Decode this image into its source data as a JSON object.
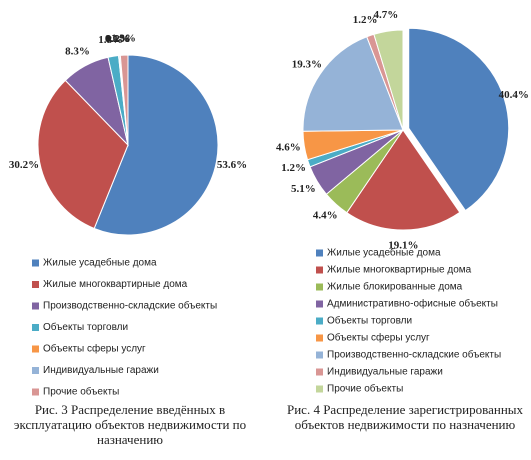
{
  "chart_data": [
    {
      "type": "pie",
      "categories": [
        "Жилые усадебные дома",
        "Жилые многоквартирные дома",
        "Производственно-складские объекты",
        "Объекты торговли",
        "Объекты сферы услуг",
        "Индивидуальные гаражи",
        "Прочие объекты"
      ],
      "values": [
        53.6,
        30.2,
        8.3,
        1.8,
        0.1,
        0.2,
        1.3
      ],
      "value_labels": [
        "53.6%",
        "30.2%",
        "8.3%",
        "1.8%",
        "0.1%",
        "0.2%",
        "1.3%"
      ],
      "colors": [
        "#4F81BD",
        "#C0504D",
        "#8064A2",
        "#4BACC6",
        "#F79646",
        "#95B3D7",
        "#D99694"
      ],
      "caption": [
        "Рис. 3 Распределение введённых в",
        "эксплуатацию объектов недвижимости по",
        "назначению"
      ]
    },
    {
      "type": "pie",
      "categories": [
        "Жилые усадебные дома",
        "Жилые многоквартирные дома",
        "Жилые блокированные дома",
        "Административно-офисные объекты",
        "Объекты торговли",
        "Объекты сферы услуг",
        "Производственно-складские объекты",
        "Индивидуальные гаражи",
        "Прочие объекты"
      ],
      "values": [
        40.4,
        19.1,
        4.4,
        5.1,
        1.2,
        4.6,
        19.3,
        1.2,
        4.7
      ],
      "value_labels": [
        "40.4%",
        "19.1%",
        "4.4%",
        "5.1%",
        "1.2%",
        "4.6%",
        "19.3%",
        "1.2%",
        "4.7%"
      ],
      "colors": [
        "#4F81BD",
        "#C0504D",
        "#9BBB59",
        "#8064A2",
        "#4BACC6",
        "#F79646",
        "#95B3D7",
        "#D99694",
        "#C3D69B"
      ],
      "caption": [
        "Рис. 4 Распределение зарегистрированных",
        "объектов недвижимости по назначению"
      ]
    }
  ]
}
